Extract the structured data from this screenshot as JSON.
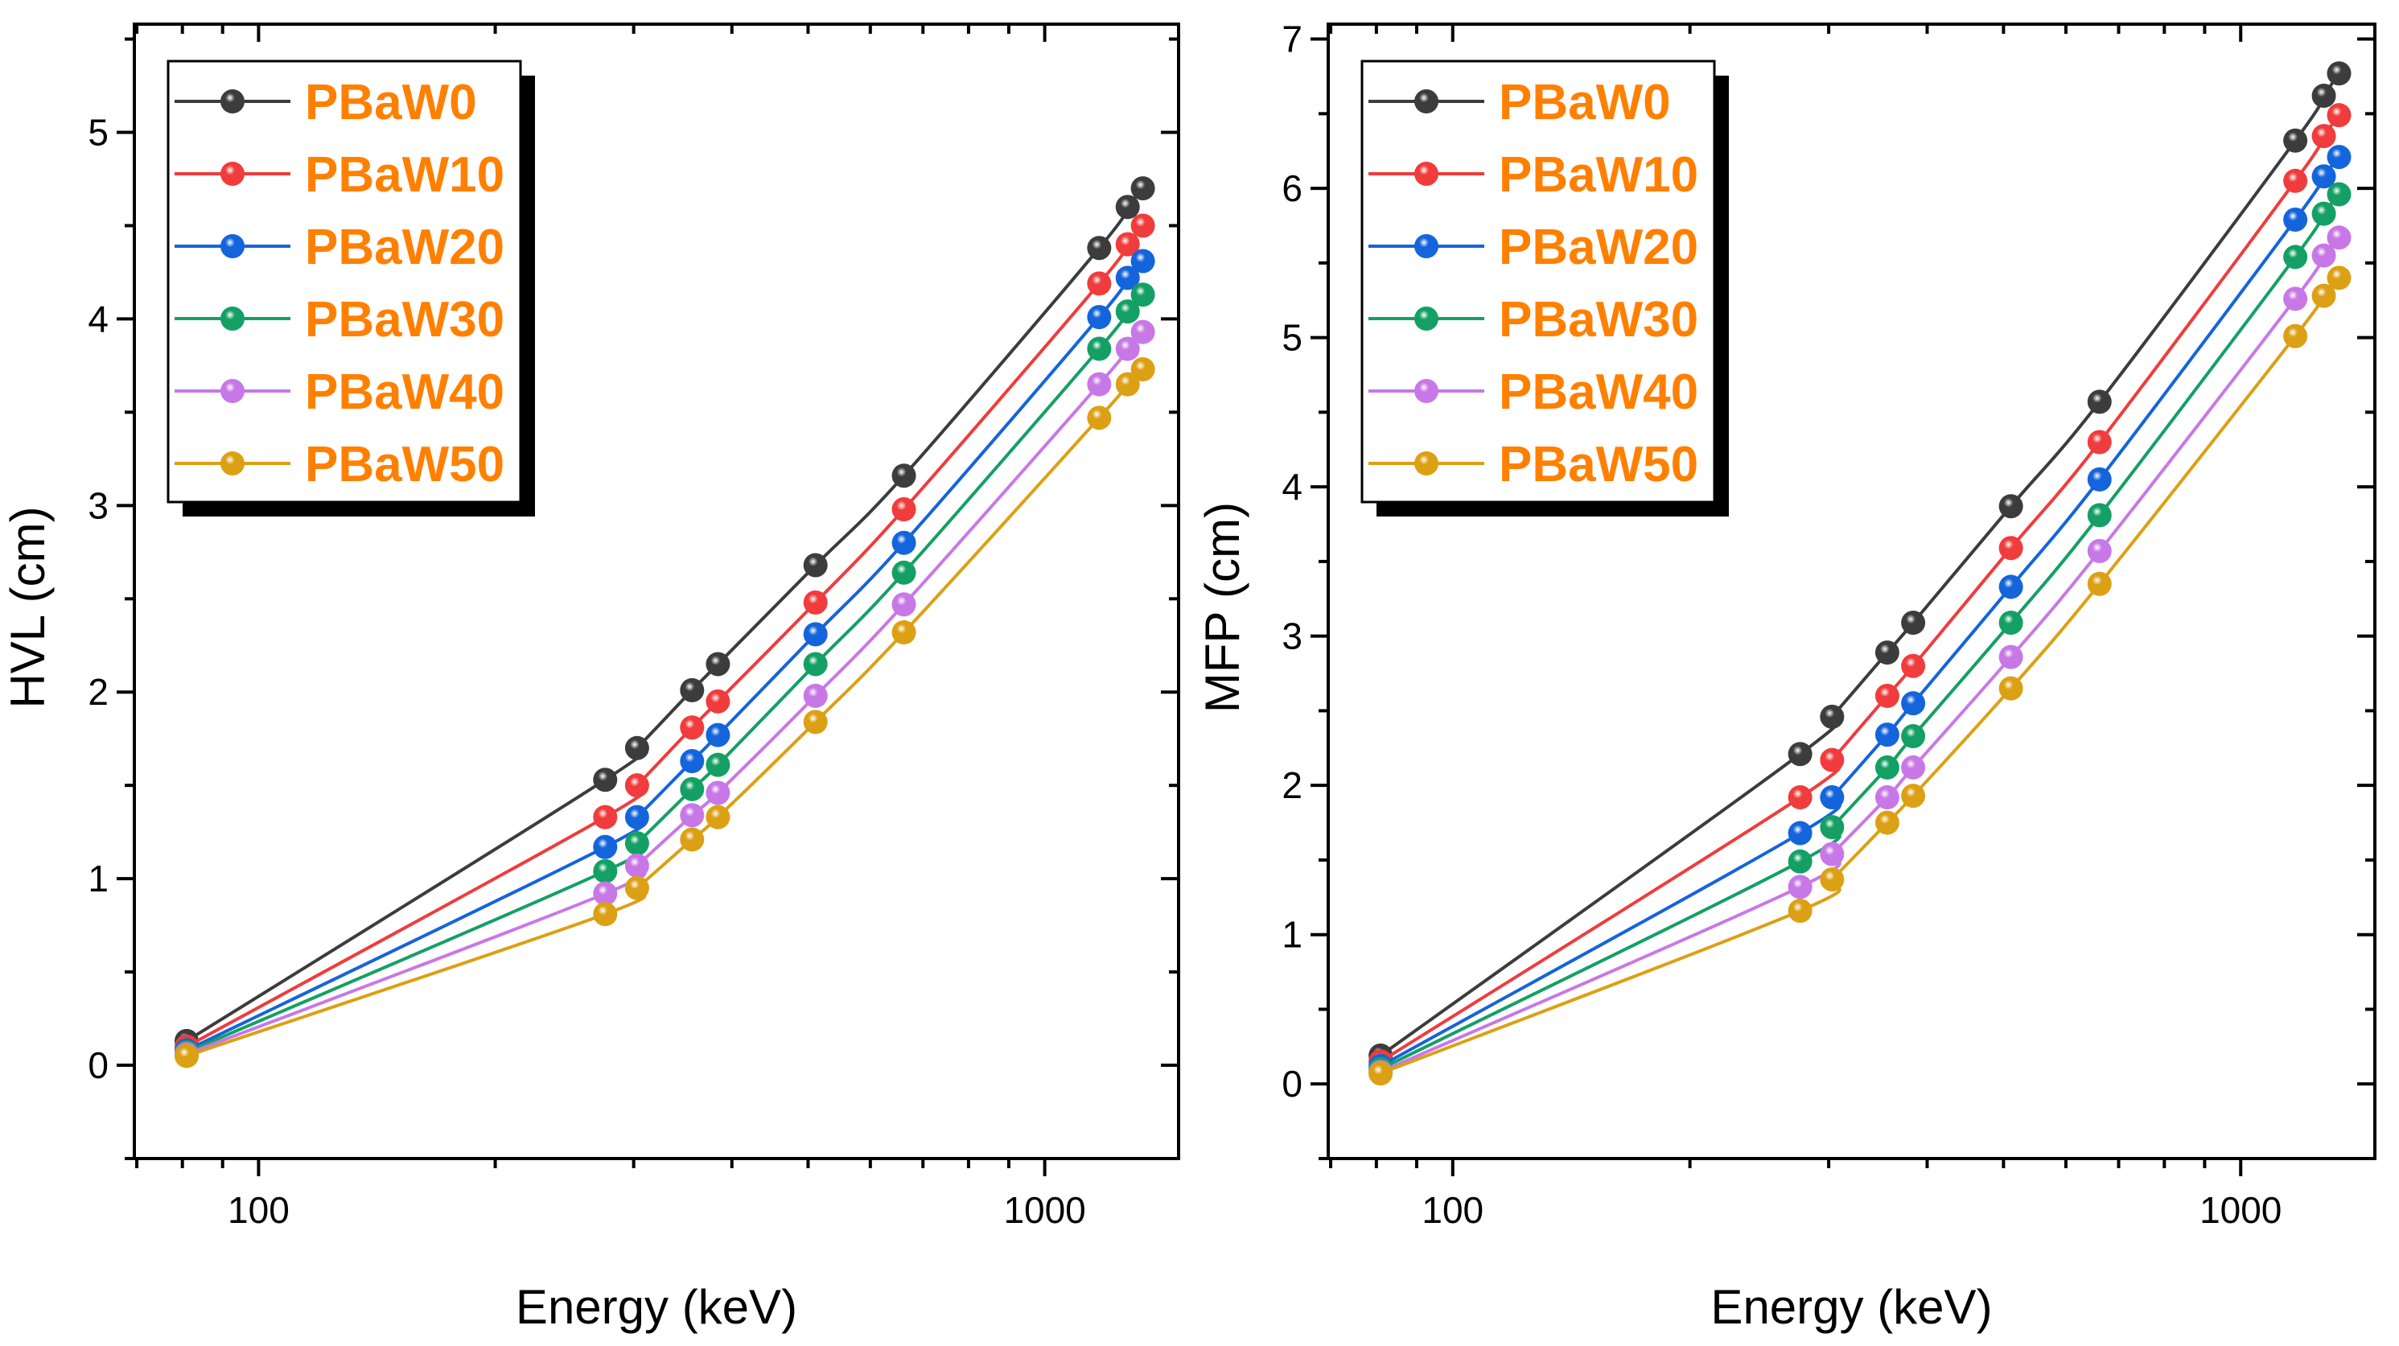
{
  "chart_data": [
    {
      "type": "line",
      "title": "",
      "xlabel": "Energy (keV)",
      "ylabel": "HVL (cm)",
      "xscale": "log",
      "xlim": [
        69.5,
        1480
      ],
      "ylim": [
        -0.5,
        5.58
      ],
      "xticks": [
        100,
        1000
      ],
      "xtick_labels": [
        "100",
        "1000"
      ],
      "yticks": [
        0,
        1,
        2,
        3,
        4,
        5
      ],
      "ytick_labels": [
        "0",
        "1",
        "2",
        "3",
        "4",
        "5"
      ],
      "legend_position": "top-left",
      "x": [
        81,
        276,
        303,
        356,
        384,
        511,
        662,
        1173,
        1275,
        1333
      ],
      "series": [
        {
          "name": "PBaW0",
          "color": "#3c3c3c",
          "values": [
            0.13,
            1.53,
            1.7,
            2.01,
            2.15,
            2.68,
            3.16,
            4.38,
            4.6,
            4.7
          ]
        },
        {
          "name": "PBaW10",
          "color": "#f03c3c",
          "values": [
            0.1,
            1.33,
            1.5,
            1.81,
            1.95,
            2.48,
            2.98,
            4.19,
            4.4,
            4.5
          ]
        },
        {
          "name": "PBaW20",
          "color": "#1464dc",
          "values": [
            0.08,
            1.17,
            1.33,
            1.63,
            1.77,
            2.31,
            2.8,
            4.01,
            4.22,
            4.31
          ]
        },
        {
          "name": "PBaW30",
          "color": "#14a064",
          "values": [
            0.07,
            1.04,
            1.19,
            1.48,
            1.61,
            2.15,
            2.64,
            3.84,
            4.04,
            4.13
          ]
        },
        {
          "name": "PBaW40",
          "color": "#c878e6",
          "values": [
            0.06,
            0.92,
            1.07,
            1.34,
            1.46,
            1.98,
            2.47,
            3.65,
            3.84,
            3.93
          ]
        },
        {
          "name": "PBaW50",
          "color": "#dca014",
          "values": [
            0.05,
            0.81,
            0.95,
            1.21,
            1.33,
            1.84,
            2.32,
            3.47,
            3.65,
            3.73
          ]
        }
      ]
    },
    {
      "type": "line",
      "title": "",
      "xlabel": "Energy (keV)",
      "ylabel": "MFP (cm)",
      "xscale": "log",
      "xlim": [
        69.5,
        1480
      ],
      "ylim": [
        -0.5,
        7.1
      ],
      "xticks": [
        100,
        1000
      ],
      "xtick_labels": [
        "100",
        "1000"
      ],
      "yticks": [
        0,
        1,
        2,
        3,
        4,
        5,
        6,
        7
      ],
      "ytick_labels": [
        "0",
        "1",
        "2",
        "3",
        "4",
        "5",
        "6",
        "7"
      ],
      "legend_position": "top-left",
      "x": [
        81,
        276,
        303,
        356,
        384,
        511,
        662,
        1173,
        1275,
        1333
      ],
      "series": [
        {
          "name": "PBaW0",
          "color": "#3c3c3c",
          "values": [
            0.19,
            2.21,
            2.46,
            2.89,
            3.09,
            3.87,
            4.57,
            6.32,
            6.62,
            6.77
          ]
        },
        {
          "name": "PBaW10",
          "color": "#f03c3c",
          "values": [
            0.15,
            1.92,
            2.17,
            2.6,
            2.8,
            3.59,
            4.3,
            6.05,
            6.35,
            6.49
          ]
        },
        {
          "name": "PBaW20",
          "color": "#1464dc",
          "values": [
            0.12,
            1.68,
            1.92,
            2.34,
            2.55,
            3.33,
            4.05,
            5.79,
            6.08,
            6.21
          ]
        },
        {
          "name": "PBaW30",
          "color": "#14a064",
          "values": [
            0.1,
            1.49,
            1.72,
            2.12,
            2.33,
            3.09,
            3.81,
            5.54,
            5.83,
            5.96
          ]
        },
        {
          "name": "PBaW40",
          "color": "#c878e6",
          "values": [
            0.08,
            1.32,
            1.54,
            1.92,
            2.12,
            2.86,
            3.57,
            5.26,
            5.55,
            5.67
          ]
        },
        {
          "name": "PBaW50",
          "color": "#dca014",
          "values": [
            0.07,
            1.16,
            1.37,
            1.75,
            1.93,
            2.65,
            3.35,
            5.01,
            5.28,
            5.4
          ]
        }
      ]
    }
  ]
}
